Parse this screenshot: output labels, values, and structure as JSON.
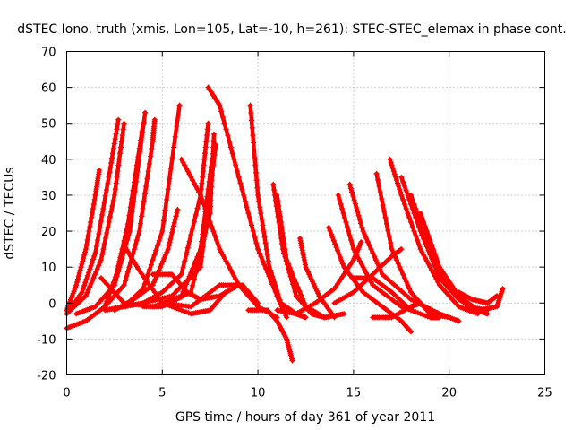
{
  "chart_data": {
    "type": "scatter",
    "title": "dSTEC Iono. truth (xmis, Lon=105, Lat=-10, h=261): STEC-STEC_elemax in phase cont.",
    "xlabel": "GPS time / hours of day 361 of year 2011",
    "ylabel": "dSTEC  / TECUs",
    "xlim": [
      0,
      25
    ],
    "ylim": [
      -20,
      70
    ],
    "xticks": [
      0,
      5,
      10,
      15,
      20,
      25
    ],
    "yticks": [
      -20,
      -10,
      0,
      10,
      20,
      30,
      40,
      50,
      60,
      70
    ],
    "grid": true,
    "marker": "+",
    "color": "#ff0000",
    "series": [
      {
        "x": [
          0.0,
          0.5,
          1.0,
          1.5,
          1.7
        ],
        "y": [
          -2,
          5,
          15,
          30,
          37
        ]
      },
      {
        "x": [
          0.0,
          0.8,
          1.5,
          2.2,
          2.7
        ],
        "y": [
          -3,
          3,
          14,
          35,
          51
        ]
      },
      {
        "x": [
          0.0,
          1.0,
          1.8,
          2.5,
          3.0
        ],
        "y": [
          -3,
          2,
          12,
          30,
          50
        ]
      },
      {
        "x": [
          0.0,
          1.0,
          2.0,
          2.6,
          3.2,
          4.0
        ],
        "y": [
          -7,
          -5,
          -1,
          8,
          22,
          50
        ]
      },
      {
        "x": [
          0.5,
          1.5,
          2.5,
          3.3,
          4.1
        ],
        "y": [
          -3,
          -1,
          5,
          20,
          53
        ]
      },
      {
        "x": [
          2.0,
          3.0,
          3.8,
          4.5,
          4.6
        ],
        "y": [
          -1,
          5,
          20,
          45,
          51
        ]
      },
      {
        "x": [
          2.0,
          3.0,
          4.0,
          5.0,
          5.9
        ],
        "y": [
          -2,
          -1,
          4,
          20,
          55
        ]
      },
      {
        "x": [
          2.5,
          3.5,
          4.5,
          5.3,
          5.8
        ],
        "y": [
          -2,
          1,
          5,
          15,
          26
        ]
      },
      {
        "x": [
          1.8,
          3.0,
          4.5,
          6.0,
          7.0,
          7.6
        ],
        "y": [
          7,
          0,
          -1,
          2,
          15,
          40
        ]
      },
      {
        "x": [
          3.0,
          4.0,
          5.0,
          6.0,
          7.0,
          7.4
        ],
        "y": [
          -1,
          0,
          3,
          8,
          30,
          50
        ]
      },
      {
        "x": [
          4.0,
          5.0,
          6.5,
          7.5,
          7.7
        ],
        "y": [
          -1,
          -1,
          3,
          25,
          47
        ]
      },
      {
        "x": [
          4.0,
          5.5,
          7.0,
          7.8
        ],
        "y": [
          0,
          2,
          10,
          44
        ]
      },
      {
        "x": [
          3.0,
          3.8,
          5.0,
          6.5,
          7.5,
          8.3
        ],
        "y": [
          16,
          9,
          0,
          -3,
          -2,
          3
        ]
      },
      {
        "x": [
          4.5,
          5.5,
          6.3,
          7.0,
          8.0,
          9.0
        ],
        "y": [
          8,
          8,
          3,
          1,
          2,
          5
        ]
      },
      {
        "x": [
          6.0,
          7.0,
          8.0,
          9.0,
          10.0,
          11.0
        ],
        "y": [
          40,
          30,
          15,
          5,
          -1,
          -4
        ]
      },
      {
        "x": [
          7.4,
          8.0,
          9.0,
          10.0,
          11.0,
          11.5
        ],
        "y": [
          60,
          55,
          35,
          15,
          2,
          -4
        ]
      },
      {
        "x": [
          9.6,
          10.0,
          10.6,
          11.2,
          12.0,
          12.5
        ],
        "y": [
          55,
          30,
          10,
          0,
          -3,
          -4
        ]
      },
      {
        "x": [
          5.0,
          6.5,
          8.0,
          9.2,
          10.0
        ],
        "y": [
          0,
          -1,
          5,
          5,
          0
        ]
      },
      {
        "x": [
          9.5,
          10.5,
          11.0,
          11.5,
          11.8
        ],
        "y": [
          -2,
          -2,
          -5,
          -10,
          -16
        ]
      },
      {
        "x": [
          10.8,
          11.3,
          12.0,
          12.8,
          13.5
        ],
        "y": [
          33,
          15,
          2,
          -3,
          -4
        ]
      },
      {
        "x": [
          11.0,
          11.5,
          12.5,
          13.5,
          14.5
        ],
        "y": [
          30,
          12,
          -1,
          -4,
          -3
        ]
      },
      {
        "x": [
          12.2,
          12.5,
          13.2,
          14.0
        ],
        "y": [
          18,
          10,
          2,
          -4
        ]
      },
      {
        "x": [
          11.0,
          12.0,
          13.0,
          14.0,
          15.0,
          15.4
        ],
        "y": [
          -2,
          -3,
          0,
          4,
          12,
          17
        ]
      },
      {
        "x": [
          13.7,
          14.5,
          15.5,
          16.5,
          17.5,
          18.0
        ],
        "y": [
          21,
          10,
          3,
          -1,
          -5,
          -8
        ]
      },
      {
        "x": [
          14.2,
          15.0,
          16.0,
          17.5,
          19.0,
          19.5
        ],
        "y": [
          30,
          15,
          5,
          -1,
          -4,
          -4
        ]
      },
      {
        "x": [
          14.8,
          15.5,
          16.5,
          18.0,
          19.5,
          20.5
        ],
        "y": [
          33,
          20,
          8,
          1,
          -3,
          -5
        ]
      },
      {
        "x": [
          15.0,
          16.0,
          17.0,
          18.0
        ],
        "y": [
          7,
          7,
          3,
          -2
        ]
      },
      {
        "x": [
          14.0,
          15.0,
          16.0,
          17.0,
          17.5
        ],
        "y": [
          0,
          3,
          8,
          13,
          15
        ]
      },
      {
        "x": [
          16.2,
          17.0,
          18.0,
          19.0,
          20.0
        ],
        "y": [
          36,
          15,
          3,
          -3,
          -4
        ]
      },
      {
        "x": [
          16.9,
          17.5,
          18.5,
          19.5,
          20.5,
          21.5
        ],
        "y": [
          40,
          30,
          15,
          5,
          -1,
          -3
        ]
      },
      {
        "x": [
          17.5,
          18.5,
          19.5,
          20.5,
          21.5,
          22.0
        ],
        "y": [
          35,
          20,
          7,
          1,
          -2,
          -3
        ]
      },
      {
        "x": [
          18.0,
          19.0,
          20.0,
          21.0,
          22.0
        ],
        "y": [
          30,
          15,
          4,
          -1,
          -2
        ]
      },
      {
        "x": [
          18.5,
          19.5,
          20.5,
          21.5,
          22.5,
          22.8
        ],
        "y": [
          25,
          10,
          2,
          -2,
          -1,
          4
        ]
      },
      {
        "x": [
          16.0,
          17.0,
          18.0,
          18.5
        ],
        "y": [
          -4,
          -4,
          -1,
          0
        ]
      },
      {
        "x": [
          20.5,
          21.2,
          22.0,
          22.5
        ],
        "y": [
          3,
          1,
          0,
          2
        ]
      }
    ]
  }
}
